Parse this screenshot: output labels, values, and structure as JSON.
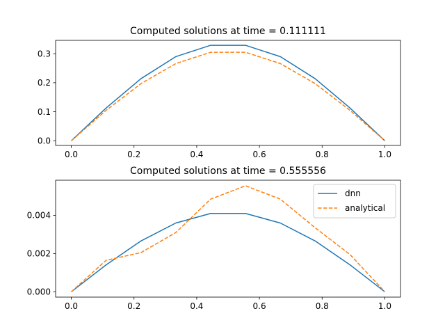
{
  "chart_data": [
    {
      "type": "line",
      "title": "Computed solutions at time = 0.111111",
      "xlabel": "",
      "ylabel": "",
      "xlim": [
        -0.05,
        1.05
      ],
      "ylim": [
        -0.016,
        0.346
      ],
      "xticks": [
        0.0,
        0.2,
        0.4,
        0.6,
        0.8,
        1.0
      ],
      "xtick_labels": [
        "0.0",
        "0.2",
        "0.4",
        "0.6",
        "0.8",
        "1.0"
      ],
      "yticks": [
        0.0,
        0.1,
        0.2,
        0.3
      ],
      "ytick_labels": [
        "0.0",
        "0.1",
        "0.2",
        "0.3"
      ],
      "grid": false,
      "legend": null,
      "x": [
        0.0,
        0.1111,
        0.2222,
        0.3333,
        0.4444,
        0.5556,
        0.6667,
        0.7778,
        0.8889,
        1.0
      ],
      "series": [
        {
          "name": "dnn",
          "color": "#1f77b4",
          "dash": "solid",
          "values": [
            0.0,
            0.113,
            0.214,
            0.29,
            0.329,
            0.329,
            0.29,
            0.214,
            0.113,
            0.0
          ]
        },
        {
          "name": "analytical",
          "color": "#ff7f0e",
          "dash": "dashed",
          "values": [
            0.0,
            0.105,
            0.197,
            0.266,
            0.305,
            0.305,
            0.266,
            0.197,
            0.105,
            0.0
          ]
        }
      ]
    },
    {
      "type": "line",
      "title": "Computed solutions at time = 0.555556",
      "xlabel": "",
      "ylabel": "",
      "xlim": [
        -0.05,
        1.05
      ],
      "ylim": [
        -0.00028,
        0.00584
      ],
      "xticks": [
        0.0,
        0.2,
        0.4,
        0.6,
        0.8,
        1.0
      ],
      "xtick_labels": [
        "0.0",
        "0.2",
        "0.4",
        "0.6",
        "0.8",
        "1.0"
      ],
      "yticks": [
        0.0,
        0.002,
        0.004
      ],
      "ytick_labels": [
        "0.000",
        "0.002",
        "0.004"
      ],
      "grid": false,
      "legend": "top-right",
      "legend_entries": [
        "dnn",
        "analytical"
      ],
      "x": [
        0.0,
        0.1111,
        0.2222,
        0.3333,
        0.4444,
        0.5556,
        0.6667,
        0.7778,
        0.8889,
        1.0
      ],
      "series": [
        {
          "name": "dnn",
          "color": "#1f77b4",
          "dash": "solid",
          "values": [
            0.0,
            0.00141,
            0.00266,
            0.0036,
            0.0041,
            0.0041,
            0.0036,
            0.00266,
            0.00141,
            0.0
          ]
        },
        {
          "name": "analytical",
          "color": "#ff7f0e",
          "dash": "dashed",
          "values": [
            0.0,
            0.00165,
            0.00205,
            0.0031,
            0.00485,
            0.00555,
            0.00485,
            0.00335,
            0.00195,
            0.0
          ]
        }
      ]
    }
  ]
}
